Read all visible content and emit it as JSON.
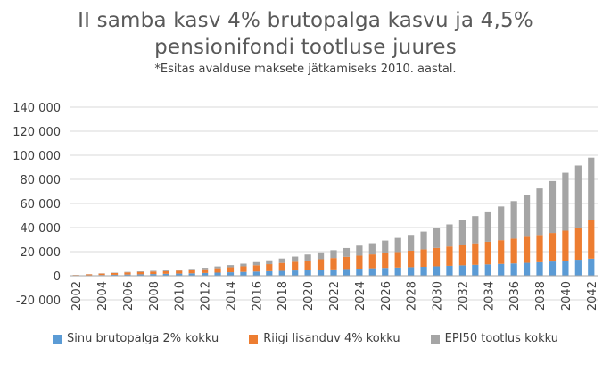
{
  "title_lines": [
    "II samba kasv 4% brutopalga kasvu ja 4,5%",
    "pensionifondi tootluse juures"
  ],
  "subtitle": "*Esitas avalduse maksete jätkamiseks 2010. aastal.",
  "colors": {
    "series1": "#5b9bd5",
    "series2": "#ed7d31",
    "series3": "#a5a5a5"
  },
  "chart_data": {
    "type": "bar",
    "stacked": true,
    "ylim": [
      -20000,
      140000
    ],
    "yticks": [
      -20000,
      0,
      20000,
      40000,
      60000,
      80000,
      100000,
      120000,
      140000
    ],
    "ytick_labels": [
      "-20 000",
      "0",
      "20 000",
      "40 000",
      "60 000",
      "80 000",
      "100 000",
      "120 000",
      "140 000"
    ],
    "grid": true,
    "legend_position": "bottom",
    "categories": [
      "2002",
      "2003",
      "2004",
      "2005",
      "2006",
      "2007",
      "2008",
      "2009",
      "2010",
      "2011",
      "2012",
      "2013",
      "2014",
      "2015",
      "2016",
      "2017",
      "2018",
      "2019",
      "2020",
      "2021",
      "2022",
      "2023",
      "2024",
      "2025",
      "2026",
      "2027",
      "2028",
      "2029",
      "2030",
      "2031",
      "2032",
      "2033",
      "2034",
      "2035",
      "2036",
      "2037",
      "2038",
      "2039",
      "2040",
      "2041",
      "2042"
    ],
    "xtick_labels": [
      "2002",
      "2004",
      "2006",
      "2008",
      "2010",
      "2012",
      "2014",
      "2016",
      "2018",
      "2020",
      "2022",
      "2024",
      "2026",
      "2028",
      "2030",
      "2032",
      "2034",
      "2036",
      "2038",
      "2040",
      "2042"
    ],
    "series": [
      {
        "name": "Sinu brutopalga 2% kokku",
        "values": [
          200,
          400,
          600,
          800,
          1000,
          1200,
          1400,
          1600,
          1800,
          2000,
          2300,
          2600,
          2900,
          3200,
          3500,
          3800,
          4100,
          4400,
          4700,
          5000,
          5300,
          5600,
          5900,
          6200,
          6500,
          6800,
          7100,
          7400,
          7800,
          8200,
          8600,
          9000,
          9400,
          9800,
          10200,
          10700,
          11200,
          11800,
          12500,
          13300,
          14200
        ]
      },
      {
        "name": "Riigi lisanduv 4% kokku",
        "values": [
          400,
          800,
          1200,
          1500,
          1800,
          2000,
          2100,
          2200,
          2400,
          2700,
          3100,
          3600,
          4100,
          4600,
          5200,
          5800,
          6500,
          7200,
          7900,
          8700,
          9400,
          10100,
          10800,
          11500,
          12200,
          12900,
          13700,
          14500,
          15300,
          16100,
          17000,
          17900,
          18800,
          19700,
          20600,
          21600,
          22600,
          23700,
          24900,
          26200,
          32000
        ]
      },
      {
        "name": "EPI50 tootlus kokku",
        "values": [
          50,
          100,
          200,
          300,
          400,
          500,
          600,
          700,
          800,
          1000,
          1200,
          1500,
          1800,
          2200,
          2600,
          3200,
          3700,
          4300,
          5000,
          5700,
          6500,
          7300,
          8300,
          9300,
          10500,
          11700,
          13100,
          14700,
          16400,
          18300,
          20400,
          22600,
          25200,
          28000,
          31200,
          34700,
          38700,
          43100,
          48100,
          52000,
          51800
        ]
      }
    ]
  }
}
